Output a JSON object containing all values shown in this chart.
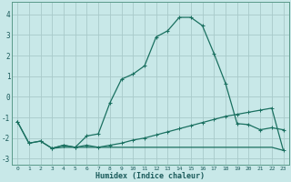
{
  "xlabel": "Humidex (Indice chaleur)",
  "background_color": "#c8e8e8",
  "grid_color": "#a8caca",
  "line_color": "#1a7060",
  "xlim": [
    -0.5,
    23.5
  ],
  "ylim": [
    -3.3,
    4.6
  ],
  "yticks": [
    -3,
    -2,
    -1,
    0,
    1,
    2,
    3,
    4
  ],
  "xticks": [
    0,
    1,
    2,
    3,
    4,
    5,
    6,
    7,
    8,
    9,
    10,
    11,
    12,
    13,
    14,
    15,
    16,
    17,
    18,
    19,
    20,
    21,
    22,
    23
  ],
  "xtick_labels": [
    "0",
    "1",
    "2",
    "3",
    "4",
    "5",
    "6",
    "7",
    "8",
    "9",
    "10",
    "11",
    "12",
    "13",
    "14",
    "15",
    "16",
    "17",
    "18",
    "19",
    "20",
    "21",
    "22",
    "23"
  ],
  "line1_x": [
    0,
    1,
    2,
    3,
    4,
    5,
    6,
    7,
    8,
    9,
    10,
    11,
    12,
    13,
    14,
    15,
    16,
    17,
    18,
    19,
    20,
    21,
    22,
    23
  ],
  "line1_y": [
    -1.2,
    -2.25,
    -2.15,
    -2.5,
    -2.35,
    -2.45,
    -1.9,
    -1.8,
    -0.3,
    0.85,
    1.1,
    1.5,
    2.9,
    3.2,
    3.85,
    3.85,
    3.45,
    2.1,
    0.65,
    -1.3,
    -1.35,
    -1.6,
    -1.5,
    -1.6
  ],
  "line2_x": [
    0,
    1,
    2,
    3,
    4,
    5,
    6,
    7,
    8,
    9,
    10,
    11,
    12,
    13,
    14,
    15,
    16,
    17,
    18,
    19,
    20,
    21,
    22,
    23
  ],
  "line2_y": [
    -1.2,
    -2.25,
    -2.15,
    -2.5,
    -2.35,
    -2.45,
    -2.35,
    -2.45,
    -2.35,
    -2.25,
    -2.1,
    -2.0,
    -1.85,
    -1.7,
    -1.55,
    -1.4,
    -1.25,
    -1.1,
    -0.95,
    -0.85,
    -0.75,
    -0.65,
    -0.55,
    -2.6
  ],
  "line3_x": [
    3,
    4,
    5,
    6,
    7,
    8,
    9,
    10,
    11,
    12,
    13,
    14,
    15,
    16,
    17,
    18,
    19,
    20,
    21,
    22,
    23
  ],
  "line3_y": [
    -2.5,
    -2.45,
    -2.45,
    -2.45,
    -2.45,
    -2.45,
    -2.45,
    -2.45,
    -2.45,
    -2.45,
    -2.45,
    -2.45,
    -2.45,
    -2.45,
    -2.45,
    -2.45,
    -2.45,
    -2.45,
    -2.45,
    -2.45,
    -2.6
  ]
}
